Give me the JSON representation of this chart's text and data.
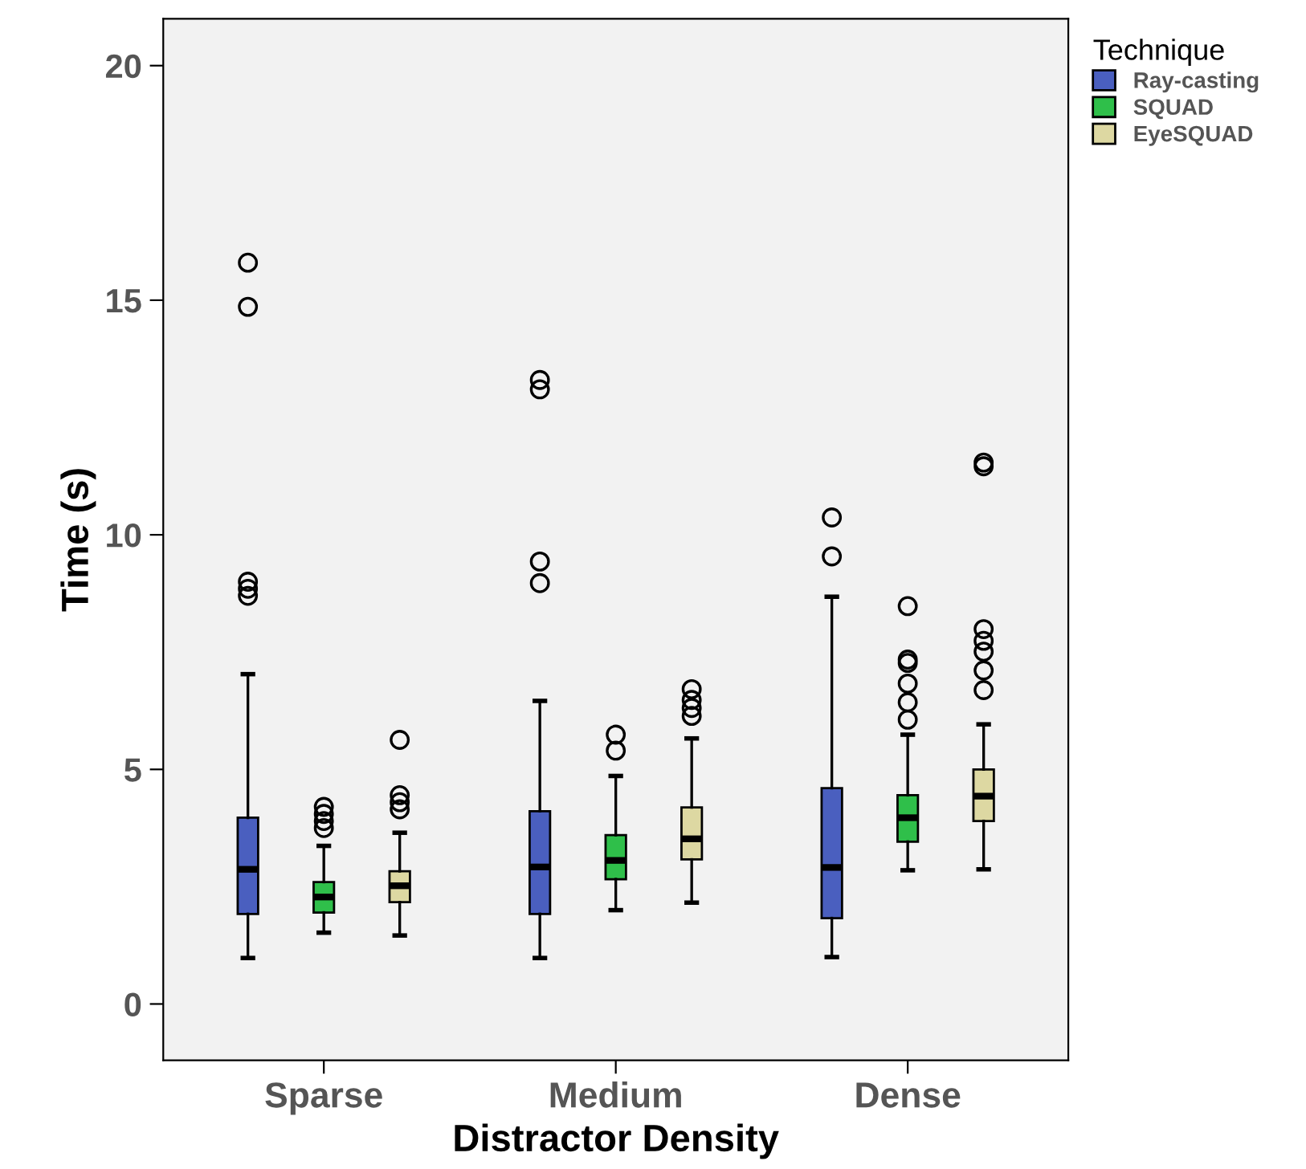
{
  "chart_data": {
    "type": "box",
    "xlabel": "Distractor Density",
    "ylabel": "Time (s)",
    "legend_title": "Technique",
    "categories": [
      "Sparse",
      "Medium",
      "Dense"
    ],
    "ylim": [
      -1.2,
      21
    ],
    "yticks": [
      0,
      5,
      10,
      15,
      20
    ],
    "grid": false,
    "legend": "top right",
    "series": [
      {
        "name": "Ray-casting",
        "color": "#4a5fbf",
        "boxes": [
          {
            "low": 0.98,
            "q1": 1.92,
            "median": 2.87,
            "q3": 3.97,
            "high": 7.03,
            "outliers": [
              15.8,
              14.86,
              9.0,
              8.85,
              8.7
            ]
          },
          {
            "low": 0.98,
            "q1": 1.92,
            "median": 2.92,
            "q3": 4.11,
            "high": 6.46,
            "outliers": [
              13.3,
              13.1,
              9.43,
              8.97
            ]
          },
          {
            "low": 1.0,
            "q1": 1.83,
            "median": 2.91,
            "q3": 4.6,
            "high": 8.68,
            "outliers": [
              10.37,
              9.54
            ]
          }
        ]
      },
      {
        "name": "SQUAD",
        "color": "#2fbf4a",
        "boxes": [
          {
            "low": 1.52,
            "q1": 1.95,
            "median": 2.28,
            "q3": 2.6,
            "high": 3.37,
            "outliers": [
              4.2,
              4.05,
              3.9,
              3.75
            ]
          },
          {
            "low": 2.0,
            "q1": 2.66,
            "median": 3.06,
            "q3": 3.6,
            "high": 4.86,
            "outliers": [
              5.74,
              5.4
            ]
          },
          {
            "low": 2.85,
            "q1": 3.46,
            "median": 3.97,
            "q3": 4.45,
            "high": 5.74,
            "outliers": [
              8.48,
              7.34,
              7.27,
              6.83,
              6.43,
              6.06
            ]
          }
        ]
      },
      {
        "name": "EyeSQUAD",
        "color": "#ddd8a2",
        "boxes": [
          {
            "low": 1.46,
            "q1": 2.17,
            "median": 2.52,
            "q3": 2.83,
            "high": 3.65,
            "outliers": [
              5.63,
              4.45,
              4.3,
              4.15
            ]
          },
          {
            "low": 2.16,
            "q1": 3.08,
            "median": 3.52,
            "q3": 4.19,
            "high": 5.66,
            "outliers": [
              6.71,
              6.48,
              6.31,
              6.14
            ]
          },
          {
            "low": 2.87,
            "q1": 3.9,
            "median": 4.43,
            "q3": 5.0,
            "high": 5.96,
            "outliers": [
              11.54,
              11.46,
              7.99,
              7.74,
              7.51,
              7.11,
              6.69
            ]
          }
        ]
      }
    ]
  }
}
